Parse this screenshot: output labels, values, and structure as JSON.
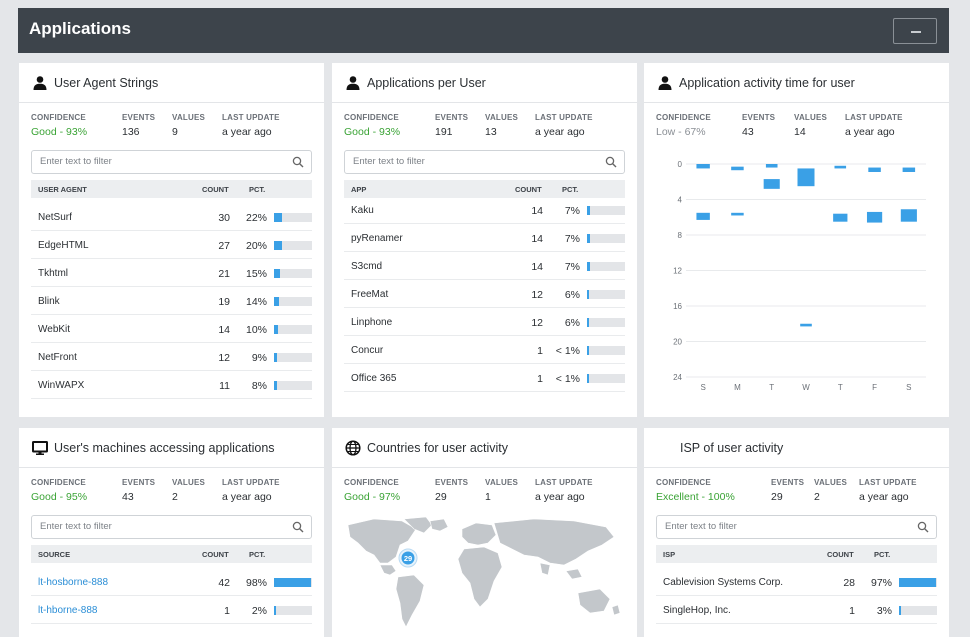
{
  "header": {
    "title": "Applications",
    "collapse_icon": "minus-icon"
  },
  "panels": {
    "ua": {
      "title": "User Agent Strings",
      "icon": "user-icon",
      "meta": {
        "confidence_label": "CONFIDENCE",
        "confidence": "Good - 93%",
        "events_label": "EVENTS",
        "events": "136",
        "values_label": "VALUES",
        "values": "9",
        "update_label": "LAST UPDATE",
        "update": "a year ago"
      },
      "filter_placeholder": "Enter text to filter",
      "columns": [
        "USER AGENT",
        "COUNT",
        "PCT."
      ],
      "rows": [
        {
          "name": "NetSurf",
          "count": "30",
          "pct": "22%",
          "fill": 0.22
        },
        {
          "name": "EdgeHTML",
          "count": "27",
          "pct": "20%",
          "fill": 0.2
        },
        {
          "name": "Tkhtml",
          "count": "21",
          "pct": "15%",
          "fill": 0.15
        },
        {
          "name": "Blink",
          "count": "19",
          "pct": "14%",
          "fill": 0.14
        },
        {
          "name": "WebKit",
          "count": "14",
          "pct": "10%",
          "fill": 0.1
        },
        {
          "name": "NetFront",
          "count": "12",
          "pct": "9%",
          "fill": 0.09
        },
        {
          "name": "WinWAPX",
          "count": "11",
          "pct": "8%",
          "fill": 0.08
        }
      ]
    },
    "apu": {
      "title": "Applications per User",
      "icon": "user-icon",
      "meta": {
        "confidence_label": "CONFIDENCE",
        "confidence": "Good - 93%",
        "events_label": "EVENTS",
        "events": "191",
        "values_label": "VALUES",
        "values": "13",
        "update_label": "LAST UPDATE",
        "update": "a year ago"
      },
      "filter_placeholder": "Enter text to filter",
      "columns": [
        "APP",
        "COUNT",
        "PCT."
      ],
      "rows": [
        {
          "name": "Kaku",
          "count": "14",
          "pct": "7%",
          "fill": 0.07
        },
        {
          "name": "pyRenamer",
          "count": "14",
          "pct": "7%",
          "fill": 0.07
        },
        {
          "name": "S3cmd",
          "count": "14",
          "pct": "7%",
          "fill": 0.07
        },
        {
          "name": "FreeMat",
          "count": "12",
          "pct": "6%",
          "fill": 0.06
        },
        {
          "name": "Linphone",
          "count": "12",
          "pct": "6%",
          "fill": 0.06
        },
        {
          "name": "Concur",
          "count": "1",
          "pct": "< 1%",
          "fill": 0.01
        },
        {
          "name": "Office 365",
          "count": "1",
          "pct": "< 1%",
          "fill": 0.01
        }
      ]
    },
    "time": {
      "title": "Application activity time for user",
      "icon": "user-icon",
      "meta": {
        "confidence_label": "CONFIDENCE",
        "confidence": "Low - 67%",
        "events_label": "EVENTS",
        "events": "43",
        "values_label": "VALUES",
        "values": "14",
        "update_label": "LAST UPDATE",
        "update": "a year ago"
      }
    },
    "machines": {
      "title": "User's machines accessing applications",
      "icon": "monitor-icon",
      "meta": {
        "confidence_label": "CONFIDENCE",
        "confidence": "Good - 95%",
        "events_label": "EVENTS",
        "events": "43",
        "values_label": "VALUES",
        "values": "2",
        "update_label": "LAST UPDATE",
        "update": "a year ago"
      },
      "filter_placeholder": "Enter text to filter",
      "columns": [
        "SOURCE",
        "COUNT",
        "PCT."
      ],
      "rows": [
        {
          "name": "lt-hosborne-888",
          "count": "42",
          "pct": "98%",
          "fill": 0.98
        },
        {
          "name": "lt-hborne-888",
          "count": "1",
          "pct": "2%",
          "fill": 0.02
        }
      ]
    },
    "countries": {
      "title": "Countries for user activity",
      "icon": "globe-icon",
      "meta": {
        "confidence_label": "CONFIDENCE",
        "confidence": "Good - 97%",
        "events_label": "EVENTS",
        "events": "29",
        "values_label": "VALUES",
        "values": "1",
        "update_label": "LAST UPDATE",
        "update": "a year ago"
      },
      "marker_count": "29"
    },
    "isp": {
      "title": "ISP of user activity",
      "meta": {
        "confidence_label": "CONFIDENCE",
        "confidence": "Excellent - 100%",
        "events_label": "EVENTS",
        "events": "29",
        "values_label": "VALUES",
        "values": "2",
        "update_label": "LAST UPDATE",
        "update": "a year ago"
      },
      "filter_placeholder": "Enter text to filter",
      "columns": [
        "ISP",
        "COUNT",
        "PCT."
      ],
      "rows": [
        {
          "name": "Cablevision Systems Corp.",
          "count": "28",
          "pct": "97%",
          "fill": 0.97
        },
        {
          "name": "SingleHop, Inc.",
          "count": "1",
          "pct": "3%",
          "fill": 0.03
        }
      ]
    }
  },
  "chart_data": {
    "type": "heatmap",
    "x_categories": [
      "S",
      "M",
      "T",
      "W",
      "T",
      "F",
      "S"
    ],
    "y_ticks": [
      0,
      4,
      8,
      12,
      16,
      20,
      24
    ],
    "ylim": [
      0,
      24
    ],
    "y_inverted": true,
    "cells": [
      {
        "day": 0,
        "hour_start": 0,
        "hour_end": 0.5,
        "weight": 0.6
      },
      {
        "day": 0,
        "hour_start": 5.5,
        "hour_end": 6.3,
        "weight": 0.6
      },
      {
        "day": 1,
        "hour_start": 0.3,
        "hour_end": 0.7,
        "weight": 0.5
      },
      {
        "day": 1,
        "hour_start": 5.5,
        "hour_end": 5.8,
        "weight": 0.5
      },
      {
        "day": 2,
        "hour_start": 0,
        "hour_end": 0.4,
        "weight": 0.4
      },
      {
        "day": 2,
        "hour_start": 1.7,
        "hour_end": 2.8,
        "weight": 0.9
      },
      {
        "day": 3,
        "hour_start": 0.5,
        "hour_end": 2.5,
        "weight": 1.0
      },
      {
        "day": 3,
        "hour_start": 18,
        "hour_end": 18.3,
        "weight": 0.4
      },
      {
        "day": 4,
        "hour_start": 0.2,
        "hour_end": 0.5,
        "weight": 0.4
      },
      {
        "day": 4,
        "hour_start": 5.6,
        "hour_end": 6.5,
        "weight": 0.7
      },
      {
        "day": 5,
        "hour_start": 0.4,
        "hour_end": 0.9,
        "weight": 0.5
      },
      {
        "day": 5,
        "hour_start": 5.4,
        "hour_end": 6.6,
        "weight": 0.8
      },
      {
        "day": 6,
        "hour_start": 0.4,
        "hour_end": 0.9,
        "weight": 0.5
      },
      {
        "day": 6,
        "hour_start": 5.1,
        "hour_end": 6.5,
        "weight": 0.9
      }
    ]
  },
  "colors": {
    "accent": "#3aa0e6",
    "good": "#3aa335",
    "header": "#3d444b"
  }
}
